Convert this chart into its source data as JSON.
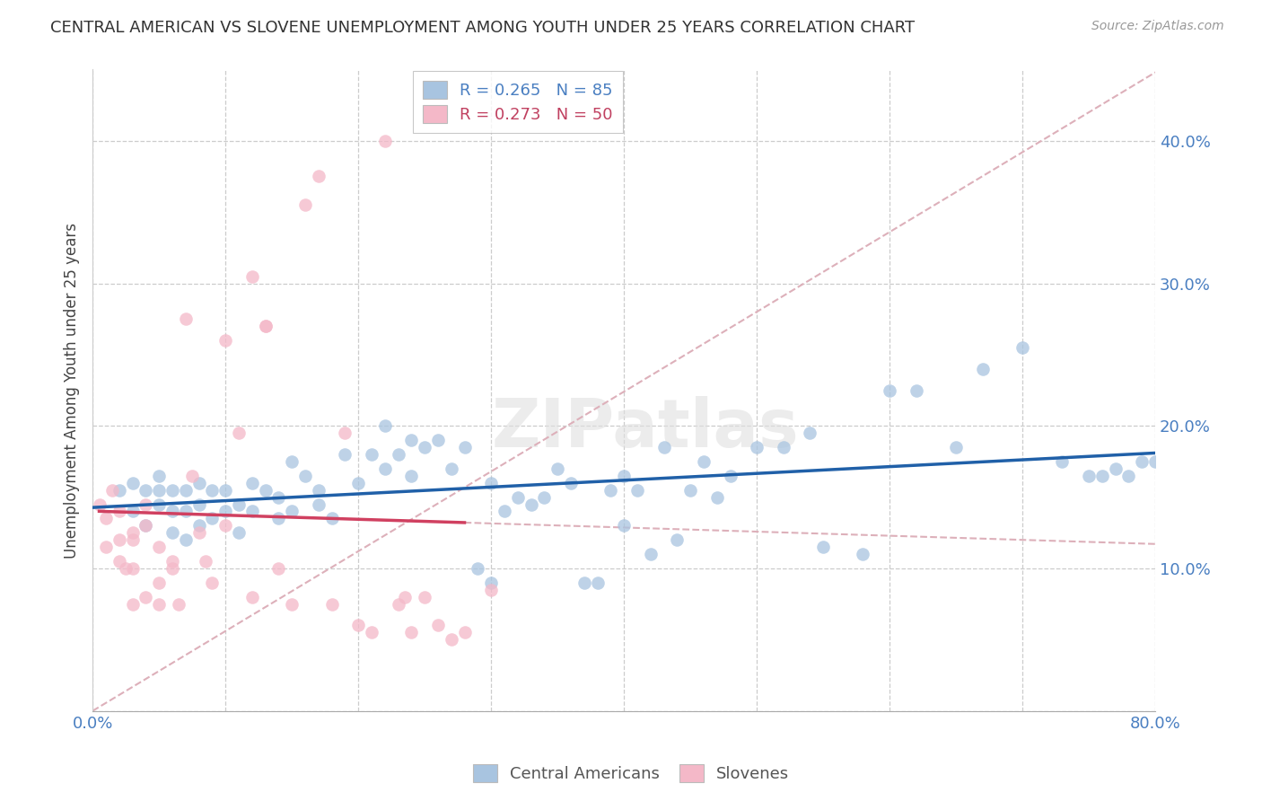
{
  "title": "CENTRAL AMERICAN VS SLOVENE UNEMPLOYMENT AMONG YOUTH UNDER 25 YEARS CORRELATION CHART",
  "source": "Source: ZipAtlas.com",
  "ylabel": "Unemployment Among Youth under 25 years",
  "xlim": [
    0,
    0.8
  ],
  "ylim": [
    0,
    0.45
  ],
  "blue_R": 0.265,
  "blue_N": 85,
  "pink_R": 0.273,
  "pink_N": 50,
  "blue_color": "#a8c4e0",
  "pink_color": "#f4b8c8",
  "blue_line_color": "#2060a8",
  "pink_line_color": "#d04060",
  "diagonal_color": "#ddb0ba",
  "background_color": "#ffffff",
  "watermark": "ZIPatlas",
  "blue_scatter_x": [
    0.02,
    0.03,
    0.03,
    0.04,
    0.04,
    0.05,
    0.05,
    0.05,
    0.06,
    0.06,
    0.06,
    0.07,
    0.07,
    0.07,
    0.08,
    0.08,
    0.08,
    0.09,
    0.09,
    0.1,
    0.1,
    0.11,
    0.11,
    0.12,
    0.12,
    0.13,
    0.14,
    0.14,
    0.15,
    0.15,
    0.16,
    0.17,
    0.17,
    0.18,
    0.19,
    0.2,
    0.21,
    0.22,
    0.22,
    0.23,
    0.24,
    0.24,
    0.25,
    0.26,
    0.27,
    0.28,
    0.29,
    0.3,
    0.3,
    0.31,
    0.32,
    0.33,
    0.34,
    0.35,
    0.36,
    0.37,
    0.38,
    0.39,
    0.4,
    0.4,
    0.41,
    0.42,
    0.43,
    0.44,
    0.45,
    0.46,
    0.47,
    0.48,
    0.5,
    0.52,
    0.54,
    0.55,
    0.58,
    0.6,
    0.62,
    0.65,
    0.67,
    0.7,
    0.73,
    0.75,
    0.76,
    0.77,
    0.78,
    0.79,
    0.8
  ],
  "blue_scatter_y": [
    0.155,
    0.14,
    0.16,
    0.13,
    0.155,
    0.145,
    0.155,
    0.165,
    0.125,
    0.14,
    0.155,
    0.12,
    0.14,
    0.155,
    0.13,
    0.145,
    0.16,
    0.135,
    0.155,
    0.14,
    0.155,
    0.125,
    0.145,
    0.14,
    0.16,
    0.155,
    0.135,
    0.15,
    0.175,
    0.14,
    0.165,
    0.145,
    0.155,
    0.135,
    0.18,
    0.16,
    0.18,
    0.17,
    0.2,
    0.18,
    0.165,
    0.19,
    0.185,
    0.19,
    0.17,
    0.185,
    0.1,
    0.09,
    0.16,
    0.14,
    0.15,
    0.145,
    0.15,
    0.17,
    0.16,
    0.09,
    0.09,
    0.155,
    0.13,
    0.165,
    0.155,
    0.11,
    0.185,
    0.12,
    0.155,
    0.175,
    0.15,
    0.165,
    0.185,
    0.185,
    0.195,
    0.115,
    0.11,
    0.225,
    0.225,
    0.185,
    0.24,
    0.255,
    0.175,
    0.165,
    0.165,
    0.17,
    0.165,
    0.175,
    0.175
  ],
  "pink_scatter_x": [
    0.005,
    0.01,
    0.01,
    0.015,
    0.02,
    0.02,
    0.02,
    0.025,
    0.03,
    0.03,
    0.03,
    0.03,
    0.04,
    0.04,
    0.04,
    0.05,
    0.05,
    0.05,
    0.06,
    0.06,
    0.065,
    0.07,
    0.075,
    0.08,
    0.085,
    0.09,
    0.1,
    0.1,
    0.11,
    0.12,
    0.12,
    0.13,
    0.13,
    0.14,
    0.15,
    0.16,
    0.17,
    0.18,
    0.19,
    0.2,
    0.21,
    0.22,
    0.23,
    0.235,
    0.24,
    0.25,
    0.26,
    0.27,
    0.28,
    0.3
  ],
  "pink_scatter_y": [
    0.145,
    0.135,
    0.115,
    0.155,
    0.14,
    0.12,
    0.105,
    0.1,
    0.125,
    0.12,
    0.1,
    0.075,
    0.145,
    0.13,
    0.08,
    0.115,
    0.09,
    0.075,
    0.105,
    0.1,
    0.075,
    0.275,
    0.165,
    0.125,
    0.105,
    0.09,
    0.26,
    0.13,
    0.195,
    0.305,
    0.08,
    0.27,
    0.27,
    0.1,
    0.075,
    0.355,
    0.375,
    0.075,
    0.195,
    0.06,
    0.055,
    0.4,
    0.075,
    0.08,
    0.055,
    0.08,
    0.06,
    0.05,
    0.055,
    0.085
  ]
}
